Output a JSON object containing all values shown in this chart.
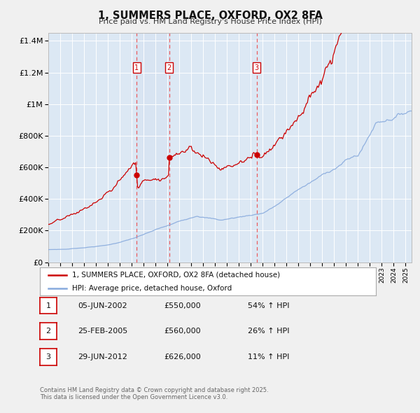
{
  "title": "1, SUMMERS PLACE, OXFORD, OX2 8FA",
  "subtitle": "Price paid vs. HM Land Registry's House Price Index (HPI)",
  "legend_red": "1, SUMMERS PLACE, OXFORD, OX2 8FA (detached house)",
  "legend_blue": "HPI: Average price, detached house, Oxford",
  "transactions": [
    {
      "num": 1,
      "date": "05-JUN-2002",
      "price": "£550,000",
      "hpi_pct": "54% ↑ HPI",
      "date_num": 2002.43
    },
    {
      "num": 2,
      "date": "25-FEB-2005",
      "price": "£560,000",
      "hpi_pct": "26% ↑ HPI",
      "date_num": 2005.15
    },
    {
      "num": 3,
      "date": "29-JUN-2012",
      "price": "£626,000",
      "hpi_pct": "11% ↑ HPI",
      "date_num": 2012.49
    }
  ],
  "footer_line1": "Contains HM Land Registry data © Crown copyright and database right 2025.",
  "footer_line2": "This data is licensed under the Open Government Licence v3.0.",
  "red_color": "#cc0000",
  "blue_color": "#88aadd",
  "vline_color": "#ee4444",
  "bg_color": "#dce8f4",
  "grid_color": "#ffffff",
  "fig_bg": "#f0f0f0",
  "ylim_max": 1450000,
  "xlim_start": 1995.0,
  "xlim_end": 2025.5,
  "yticks": [
    0,
    200000,
    400000,
    600000,
    800000,
    1000000,
    1200000,
    1400000
  ],
  "ytick_labels": [
    "£0",
    "£200K",
    "£400K",
    "£600K",
    "£800K",
    "£1M",
    "£1.2M",
    "£1.4M"
  ]
}
